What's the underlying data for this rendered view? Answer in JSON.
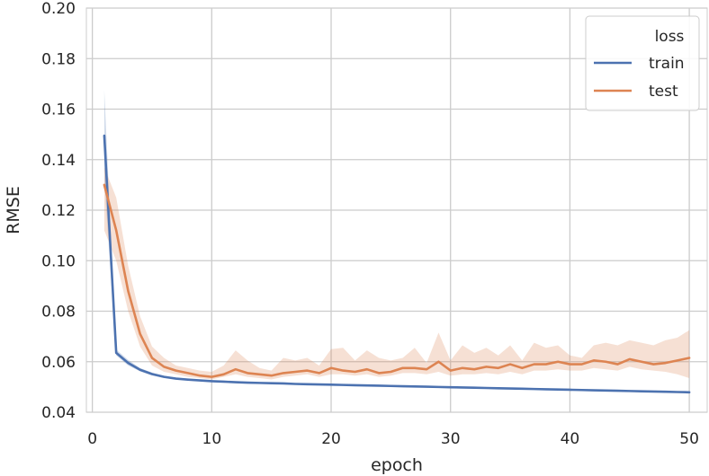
{
  "chart_data": {
    "type": "line",
    "title": "",
    "xlabel": "epoch",
    "ylabel": "RMSE",
    "xlim": [
      -0.5,
      51.5
    ],
    "ylim": [
      0.04,
      0.2
    ],
    "xticks": [
      0,
      10,
      20,
      30,
      40,
      50
    ],
    "xtick_labels": [
      "0",
      "10",
      "20",
      "30",
      "40",
      "50"
    ],
    "yticks": [
      0.04,
      0.06,
      0.08,
      0.1,
      0.12,
      0.14,
      0.16,
      0.18,
      0.2
    ],
    "ytick_labels": [
      "0.04",
      "0.06",
      "0.08",
      "0.10",
      "0.12",
      "0.14",
      "0.16",
      "0.18",
      "0.20"
    ],
    "grid": true,
    "legend": {
      "title": "loss",
      "position": "top-right"
    },
    "x": [
      1,
      2,
      3,
      4,
      5,
      6,
      7,
      8,
      9,
      10,
      11,
      12,
      13,
      14,
      15,
      16,
      17,
      18,
      19,
      20,
      21,
      22,
      23,
      24,
      25,
      26,
      27,
      28,
      29,
      30,
      31,
      32,
      33,
      34,
      35,
      36,
      37,
      38,
      39,
      40,
      41,
      42,
      43,
      44,
      45,
      46,
      47,
      48,
      49,
      50
    ],
    "series": [
      {
        "name": "train",
        "color": "#4c72b0",
        "values": [
          0.1495,
          0.0635,
          0.0595,
          0.0568,
          0.0551,
          0.054,
          0.0533,
          0.0529,
          0.0526,
          0.0523,
          0.0521,
          0.0519,
          0.0517,
          0.0516,
          0.0515,
          0.0514,
          0.0512,
          0.0511,
          0.051,
          0.0509,
          0.0508,
          0.0507,
          0.0506,
          0.0505,
          0.0504,
          0.0503,
          0.0502,
          0.0501,
          0.05,
          0.0499,
          0.0498,
          0.0497,
          0.0496,
          0.0495,
          0.0494,
          0.0493,
          0.0492,
          0.0491,
          0.049,
          0.0489,
          0.0488,
          0.0487,
          0.0486,
          0.0485,
          0.0484,
          0.0483,
          0.0482,
          0.0481,
          0.048,
          0.0479
        ],
        "ci_lower": [
          0.132,
          0.0625,
          0.0585,
          0.0562,
          0.0546,
          0.0536,
          0.053,
          0.0526,
          0.0523,
          0.0521,
          0.0519,
          0.0517,
          0.0515,
          0.0514,
          0.0513,
          0.0512,
          0.0511,
          0.051,
          0.0509,
          0.0508,
          0.0507,
          0.0506,
          0.0505,
          0.0504,
          0.0503,
          0.0502,
          0.0501,
          0.05,
          0.0499,
          0.0498,
          0.0497,
          0.0496,
          0.0495,
          0.0494,
          0.0493,
          0.0492,
          0.0491,
          0.049,
          0.0489,
          0.0488,
          0.0487,
          0.0486,
          0.0485,
          0.0484,
          0.0483,
          0.0482,
          0.0481,
          0.048,
          0.0479,
          0.0478
        ],
        "ci_upper": [
          0.1675,
          0.0648,
          0.0607,
          0.0575,
          0.0557,
          0.0545,
          0.0537,
          0.0532,
          0.0529,
          0.0526,
          0.0524,
          0.0522,
          0.052,
          0.0519,
          0.0517,
          0.0516,
          0.0514,
          0.0513,
          0.0512,
          0.0511,
          0.051,
          0.0509,
          0.0508,
          0.0507,
          0.0506,
          0.0505,
          0.0504,
          0.0503,
          0.0502,
          0.0501,
          0.05,
          0.0499,
          0.0498,
          0.0497,
          0.0496,
          0.0495,
          0.0494,
          0.0493,
          0.0492,
          0.0491,
          0.049,
          0.0489,
          0.0488,
          0.0487,
          0.0486,
          0.0485,
          0.0484,
          0.0483,
          0.0482,
          0.0481
        ]
      },
      {
        "name": "test",
        "color": "#dd8452",
        "values": [
          0.13,
          0.112,
          0.088,
          0.071,
          0.0615,
          0.058,
          0.0565,
          0.0555,
          0.0545,
          0.054,
          0.055,
          0.057,
          0.0555,
          0.055,
          0.0545,
          0.0555,
          0.056,
          0.0565,
          0.0555,
          0.0575,
          0.0565,
          0.056,
          0.057,
          0.0555,
          0.056,
          0.0575,
          0.0575,
          0.057,
          0.06,
          0.0565,
          0.0575,
          0.057,
          0.058,
          0.0575,
          0.059,
          0.0575,
          0.059,
          0.059,
          0.06,
          0.059,
          0.059,
          0.0605,
          0.06,
          0.059,
          0.061,
          0.06,
          0.059,
          0.0595,
          0.0605,
          0.0615
        ],
        "ci_lower": [
          0.112,
          0.1,
          0.08,
          0.066,
          0.0585,
          0.056,
          0.055,
          0.054,
          0.0535,
          0.053,
          0.054,
          0.055,
          0.054,
          0.0535,
          0.053,
          0.054,
          0.0545,
          0.055,
          0.054,
          0.055,
          0.055,
          0.0545,
          0.055,
          0.054,
          0.0545,
          0.0555,
          0.0555,
          0.055,
          0.056,
          0.0545,
          0.055,
          0.055,
          0.0555,
          0.055,
          0.056,
          0.055,
          0.0565,
          0.0565,
          0.057,
          0.0565,
          0.0565,
          0.0575,
          0.057,
          0.0565,
          0.058,
          0.057,
          0.0565,
          0.056,
          0.055,
          0.0535
        ],
        "ci_upper": [
          0.137,
          0.125,
          0.098,
          0.078,
          0.066,
          0.0615,
          0.0585,
          0.0575,
          0.0565,
          0.056,
          0.0585,
          0.0645,
          0.0605,
          0.0575,
          0.0565,
          0.0615,
          0.0605,
          0.0615,
          0.0585,
          0.065,
          0.0655,
          0.0605,
          0.0645,
          0.0615,
          0.0605,
          0.0615,
          0.0655,
          0.0595,
          0.0715,
          0.0605,
          0.0665,
          0.0635,
          0.0655,
          0.0625,
          0.0665,
          0.0605,
          0.0675,
          0.0655,
          0.0665,
          0.0625,
          0.0615,
          0.0665,
          0.0675,
          0.0665,
          0.0685,
          0.0675,
          0.0665,
          0.0685,
          0.0695,
          0.0725
        ]
      }
    ]
  }
}
